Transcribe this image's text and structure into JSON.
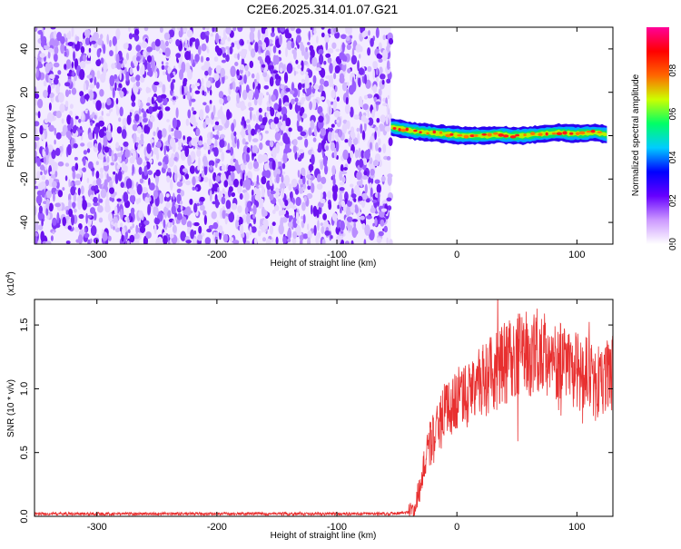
{
  "title": "C2E6.2025.314.01.07.G21",
  "chart_data": [
    {
      "type": "heatmap",
      "xlabel": "Height of straight line (km)",
      "ylabel": "Frequency (Hz)",
      "xlim": [
        -352,
        130
      ],
      "ylim": [
        -50,
        50
      ],
      "xticks": [
        -300,
        -200,
        -100,
        0,
        100
      ],
      "yticks": [
        -40,
        -20,
        0,
        20,
        40
      ],
      "noise_region_x": [
        -352,
        -55
      ],
      "ridge": {
        "x": [
          -55,
          -45,
          -35,
          -25,
          -15,
          -5,
          5,
          15,
          25,
          35,
          45,
          55,
          65,
          75,
          85,
          95,
          105,
          115,
          125
        ],
        "frequency": [
          4,
          3,
          2,
          1.5,
          1,
          0.5,
          0,
          0,
          0,
          0.5,
          0,
          0,
          0.5,
          1,
          1.5,
          1,
          1,
          1.5,
          0.5
        ]
      },
      "colorbar": {
        "label": "Normalized spectral amplitude",
        "range": [
          0,
          1
        ],
        "ticks": [
          "0.0",
          "0.2",
          "0.4",
          "0.6",
          "0.8"
        ],
        "colors": [
          "#ffffff",
          "#cc99ff",
          "#6600ff",
          "#0000ff",
          "#00ccff",
          "#00ff66",
          "#ccff00",
          "#ff6600",
          "#ff0000",
          "#ff0099"
        ]
      }
    },
    {
      "type": "line",
      "xlabel": "Height of straight line (km)",
      "ylabel": "SNR (10 * v/v)",
      "scale_label": "(x10",
      "scale_exponent": "4",
      "scale_close": ")",
      "xlim": [
        -352,
        130
      ],
      "ylim": [
        0,
        1.7
      ],
      "xticks": [
        -300,
        -200,
        -100,
        0,
        100
      ],
      "yticks": [
        "0.0",
        "0.5",
        "1.0",
        "1.5"
      ],
      "color": "#e83030",
      "series": [
        {
          "x": [
            -352,
            -300,
            -250,
            -200,
            -150,
            -100,
            -60,
            -40,
            -35,
            -30,
            -25,
            -20,
            -15,
            -10,
            -5,
            0,
            10,
            20,
            30,
            40,
            50,
            60,
            70,
            80,
            90,
            100,
            110,
            120,
            130
          ],
          "y": [
            0.02,
            0.02,
            0.02,
            0.02,
            0.02,
            0.02,
            0.02,
            0.03,
            0.08,
            0.25,
            0.5,
            0.62,
            0.72,
            0.8,
            0.85,
            0.9,
            0.98,
            1.05,
            1.12,
            1.2,
            1.25,
            1.28,
            1.3,
            1.22,
            1.18,
            1.14,
            1.1,
            1.05,
            1.15
          ]
        }
      ]
    }
  ]
}
